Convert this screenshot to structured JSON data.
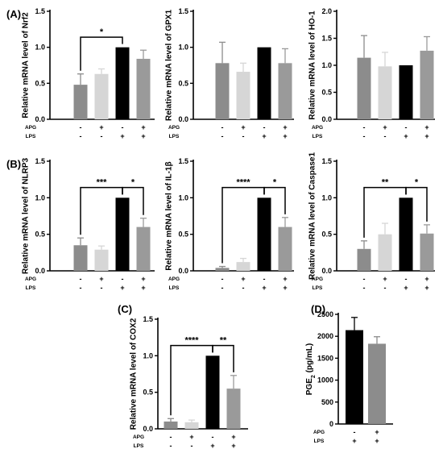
{
  "figure": {
    "row_labels": {
      "apg": "APG",
      "lps": "LPS"
    }
  },
  "chart_data": [
    {
      "panel": "(A)",
      "type": "bar",
      "ylabel": "Relative mRNA level of Nrf2",
      "ylim": [
        0,
        1.5
      ],
      "yticks": [
        "0.0",
        "0.5",
        "1.0",
        "1.5"
      ],
      "categories": [
        "APG-/LPS-",
        "APG+/LPS-",
        "APG-/LPS+",
        "APG+/LPS+"
      ],
      "values": [
        0.48,
        0.63,
        1.0,
        0.84
      ],
      "errors": [
        0.15,
        0.07,
        0.0,
        0.12
      ],
      "colors": [
        "#8c8c8c",
        "#d6d6d6",
        "#000000",
        "#9a9a9a"
      ],
      "apg": [
        "-",
        "+",
        "-",
        "+"
      ],
      "lps": [
        "-",
        "-",
        "+",
        "+"
      ],
      "significance": [
        {
          "from": 0,
          "to": 2,
          "label": "*",
          "y": 1.14
        }
      ]
    },
    {
      "panel": "",
      "type": "bar",
      "ylabel": "Relative mRNA level of GPX1",
      "ylim": [
        0,
        1.5
      ],
      "yticks": [
        "0.0",
        "0.5",
        "1.0",
        "1.5"
      ],
      "categories": [
        "APG-/LPS-",
        "APG+/LPS-",
        "APG-/LPS+",
        "APG+/LPS+"
      ],
      "values": [
        0.78,
        0.66,
        1.0,
        0.78
      ],
      "errors": [
        0.29,
        0.12,
        0.0,
        0.2
      ],
      "colors": [
        "#8c8c8c",
        "#d6d6d6",
        "#000000",
        "#9a9a9a"
      ],
      "apg": [
        "-",
        "+",
        "-",
        "+"
      ],
      "lps": [
        "-",
        "-",
        "+",
        "+"
      ],
      "significance": []
    },
    {
      "panel": "",
      "type": "bar",
      "ylabel": "Relative mRNA level of HO-1",
      "ylim": [
        0,
        2.0
      ],
      "yticks": [
        "0.0",
        "0.5",
        "1.0",
        "1.5",
        "2.0"
      ],
      "categories": [
        "APG-/LPS-",
        "APG+/LPS-",
        "APG-/LPS+",
        "APG+/LPS+"
      ],
      "values": [
        1.14,
        0.98,
        1.0,
        1.27
      ],
      "errors": [
        0.41,
        0.26,
        0.0,
        0.26
      ],
      "colors": [
        "#8c8c8c",
        "#d6d6d6",
        "#000000",
        "#9a9a9a"
      ],
      "apg": [
        "-",
        "+",
        "-",
        "+"
      ],
      "lps": [
        "-",
        "-",
        "+",
        "+"
      ],
      "significance": []
    },
    {
      "panel": "(B)",
      "type": "bar",
      "ylabel": "Relative mRNA level of NLRP3",
      "ylim": [
        0,
        1.5
      ],
      "yticks": [
        "0.0",
        "0.5",
        "1.0",
        "1.5"
      ],
      "categories": [
        "APG-/LPS-",
        "APG+/LPS-",
        "APG-/LPS+",
        "APG+/LPS+"
      ],
      "values": [
        0.35,
        0.29,
        1.0,
        0.6
      ],
      "errors": [
        0.1,
        0.05,
        0.0,
        0.12
      ],
      "colors": [
        "#8c8c8c",
        "#d6d6d6",
        "#000000",
        "#9a9a9a"
      ],
      "apg": [
        "-",
        "+",
        "-",
        "+"
      ],
      "lps": [
        "-",
        "-",
        "+",
        "+"
      ],
      "significance": [
        {
          "from": 0,
          "to": 2,
          "label": "***",
          "y": 1.14
        },
        {
          "from": 2,
          "to": 3,
          "label": "*",
          "y": 1.14
        }
      ]
    },
    {
      "panel": "",
      "type": "bar",
      "ylabel": "Relative mRNA level of IL-1β",
      "ylim": [
        0,
        1.5
      ],
      "yticks": [
        "0.0",
        "0.5",
        "1.0",
        "1.5"
      ],
      "categories": [
        "APG-/LPS-",
        "APG+/LPS-",
        "APG-/LPS+",
        "APG+/LPS+"
      ],
      "values": [
        0.04,
        0.12,
        1.0,
        0.6
      ],
      "errors": [
        0.02,
        0.05,
        0.0,
        0.13
      ],
      "colors": [
        "#8c8c8c",
        "#d6d6d6",
        "#000000",
        "#9a9a9a"
      ],
      "apg": [
        "-",
        "+",
        "-",
        "+"
      ],
      "lps": [
        "-",
        "-",
        "+",
        "+"
      ],
      "significance": [
        {
          "from": 0,
          "to": 2,
          "label": "****",
          "y": 1.14
        },
        {
          "from": 2,
          "to": 3,
          "label": "*",
          "y": 1.14
        }
      ]
    },
    {
      "panel": "",
      "type": "bar",
      "ylabel": "Relative mRNA level of Caspase1",
      "ylim": [
        0,
        1.5
      ],
      "yticks": [
        "0.0",
        "0.5",
        "1.0",
        "1.5"
      ],
      "categories": [
        "APG-/LPS-",
        "APG+/LPS-",
        "APG-/LPS+",
        "APG+/LPS+"
      ],
      "values": [
        0.3,
        0.5,
        1.0,
        0.51
      ],
      "errors": [
        0.11,
        0.15,
        0.0,
        0.12
      ],
      "colors": [
        "#8c8c8c",
        "#d6d6d6",
        "#000000",
        "#9a9a9a"
      ],
      "apg": [
        "-",
        "+",
        "-",
        "+"
      ],
      "lps": [
        "-",
        "-",
        "+",
        "+"
      ],
      "significance": [
        {
          "from": 0,
          "to": 2,
          "label": "**",
          "y": 1.14
        },
        {
          "from": 2,
          "to": 3,
          "label": "*",
          "y": 1.14
        }
      ]
    },
    {
      "panel": "(C)",
      "type": "bar",
      "ylabel": "Relative mRNA level of COX2",
      "ylim": [
        0,
        1.5
      ],
      "yticks": [
        "0.0",
        "0.5",
        "1.0",
        "1.5"
      ],
      "categories": [
        "APG-/LPS-",
        "APG+/LPS-",
        "APG-/LPS+",
        "APG+/LPS+"
      ],
      "values": [
        0.1,
        0.09,
        1.0,
        0.55
      ],
      "errors": [
        0.04,
        0.03,
        0.0,
        0.18
      ],
      "colors": [
        "#8c8c8c",
        "#d6d6d6",
        "#000000",
        "#9a9a9a"
      ],
      "apg": [
        "-",
        "+",
        "-",
        "+"
      ],
      "lps": [
        "-",
        "-",
        "+",
        "+"
      ],
      "significance": [
        {
          "from": 0,
          "to": 2,
          "label": "****",
          "y": 1.14
        },
        {
          "from": 2,
          "to": 3,
          "label": "**",
          "y": 1.14
        }
      ]
    },
    {
      "panel": "(D)",
      "type": "bar",
      "ylabel": "PGE2 (pg/mL)",
      "ylabel_main": "PGE",
      "ylabel_sub": "2",
      "ylabel_rest": " (pg/mL)",
      "ylim": [
        0,
        2500
      ],
      "yticks": [
        "0",
        "500",
        "1000",
        "1500",
        "2000",
        "2500"
      ],
      "categories": [
        "APG-/LPS+",
        "APG+/LPS+"
      ],
      "values": [
        2140,
        1830
      ],
      "errors": [
        290,
        160
      ],
      "colors": [
        "#000000",
        "#8c8c8c"
      ],
      "apg": [
        "-",
        "+"
      ],
      "lps": [
        "+",
        "+"
      ],
      "significance": []
    }
  ]
}
